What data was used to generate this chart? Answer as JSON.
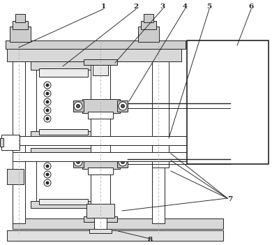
{
  "bg": "#ffffff",
  "lc": "#222222",
  "dc": "#aaaaaa",
  "figsize": [
    4.0,
    3.51
  ],
  "dpi": 100
}
